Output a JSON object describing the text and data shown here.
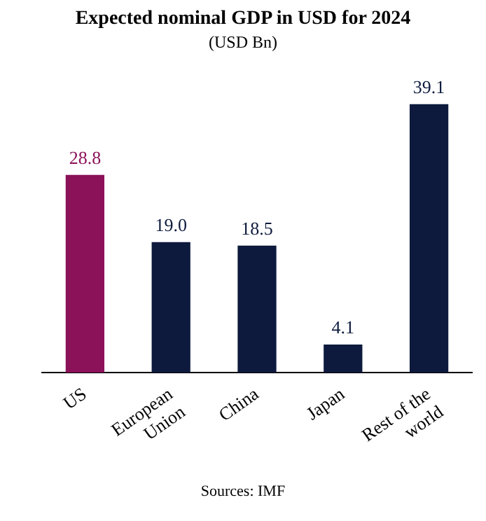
{
  "chart_data": {
    "type": "bar",
    "title": "Expected nominal GDP in USD for 2024",
    "subtitle": "(USD Bn)",
    "categories": [
      "US",
      "European Union",
      "China",
      "Japan",
      "Rest of the world"
    ],
    "values": [
      28.8,
      19.0,
      18.5,
      4.1,
      39.1
    ],
    "colors": [
      "#8b1159",
      "#0d1a3d",
      "#0d1a3d",
      "#0d1a3d",
      "#0d1a3d"
    ],
    "value_labels": [
      "28.8",
      "19.0",
      "18.5",
      "4.1",
      "39.1"
    ],
    "annotations": [
      "Sources: IMF"
    ],
    "grid": false,
    "legend": false
  }
}
